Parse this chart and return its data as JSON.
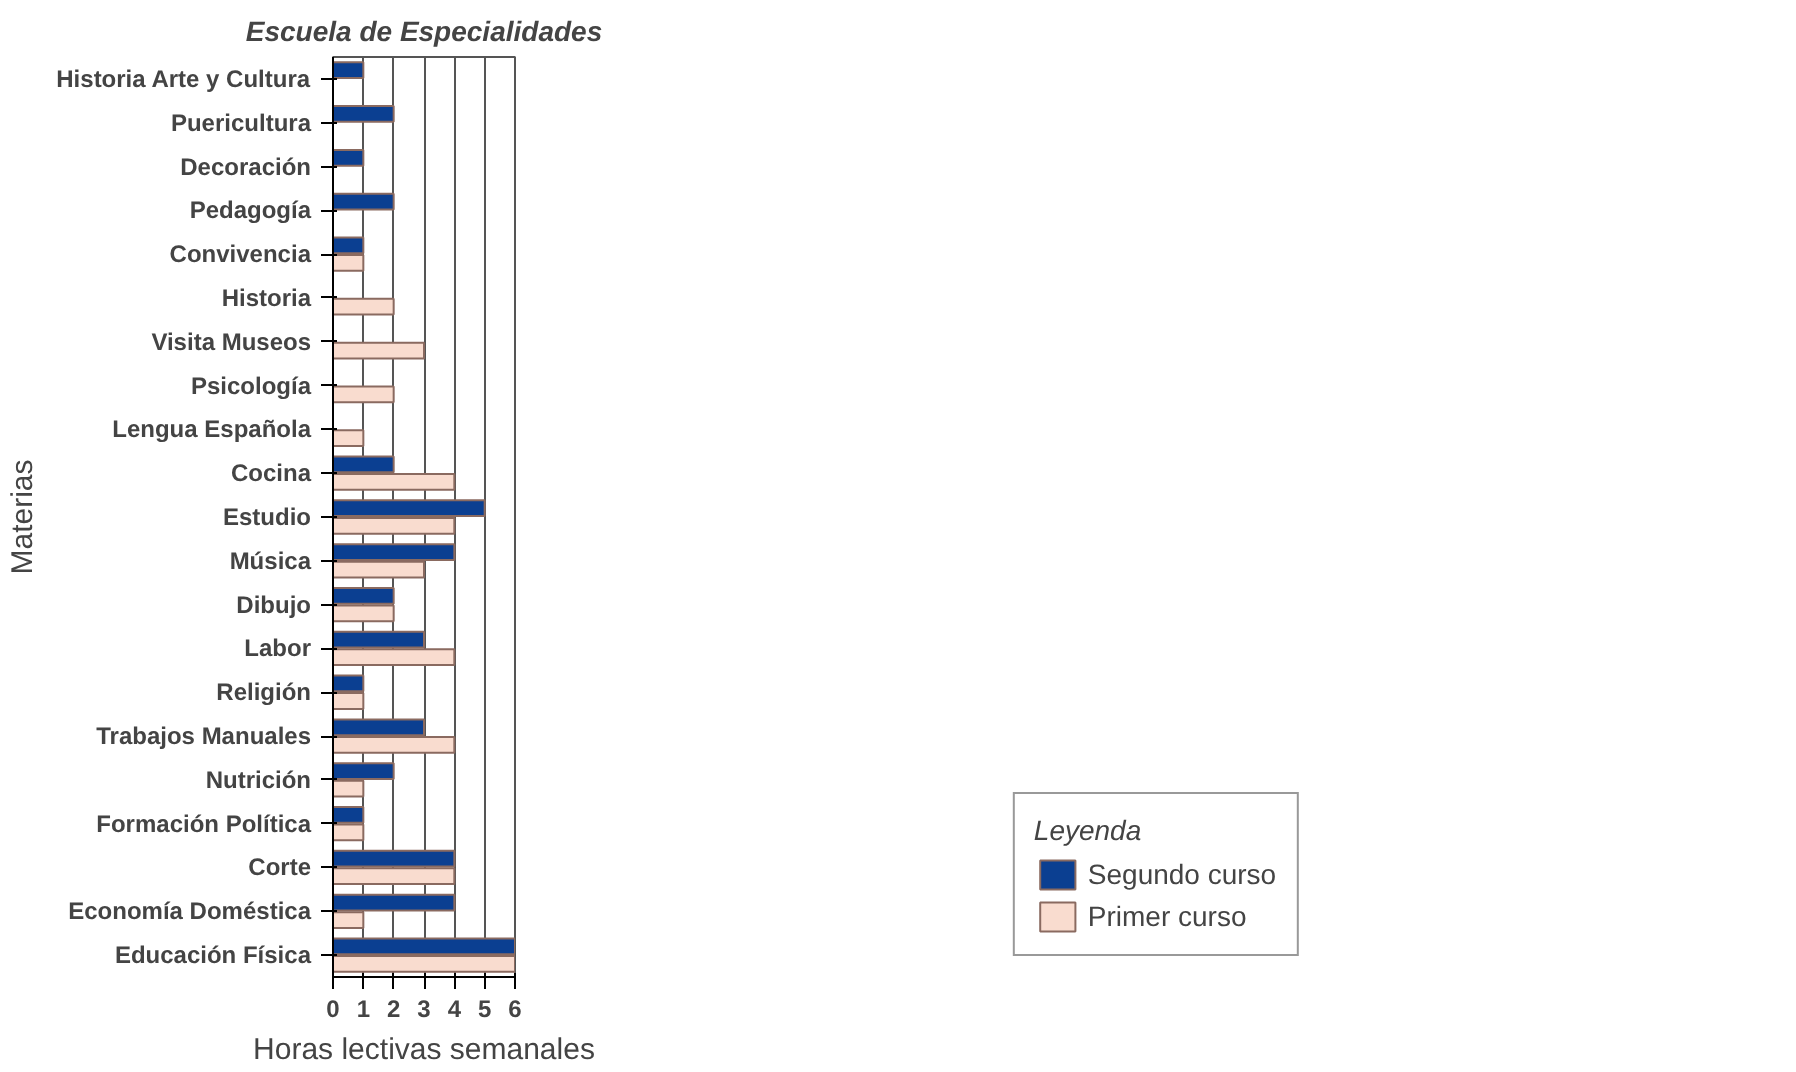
{
  "chart_data": {
    "type": "bar",
    "orientation": "horizontal",
    "title": "Escuela de Especialidades",
    "xlabel": "Horas lectivas semanales",
    "ylabel": "Materias",
    "legend_title": "Leyenda",
    "legend": "bottom right",
    "grid": "x",
    "categories": [
      "Historia Arte y Cultura",
      "Puericultura",
      "Decoración",
      "Pedagogía",
      "Convivencia",
      "Historia",
      "Visita Museos",
      "Psicología",
      "Lengua Española",
      "Cocina",
      "Estudio",
      "Música",
      "Dibujo",
      "Labor",
      "Religión",
      "Trabajos Manuales",
      "Nutrición",
      "Formación Política",
      "Corte",
      "Economía Doméstica",
      "Educación Física"
    ],
    "xlim": [
      0,
      6
    ],
    "xticks": [
      0,
      1,
      2,
      3,
      4,
      5,
      6
    ],
    "series": [
      {
        "name": "Segundo curso",
        "color": "#0b3f91",
        "values": [
          1,
          2,
          1,
          2,
          1,
          null,
          null,
          null,
          null,
          2,
          5,
          4,
          2,
          3,
          1,
          3,
          2,
          1,
          4,
          4,
          6
        ]
      },
      {
        "name": "Primer curso",
        "color": "#f9dccf",
        "values": [
          null,
          null,
          null,
          null,
          1,
          2,
          3,
          2,
          1,
          4,
          4,
          3,
          2,
          4,
          1,
          4,
          1,
          1,
          4,
          1,
          6
        ]
      }
    ]
  }
}
